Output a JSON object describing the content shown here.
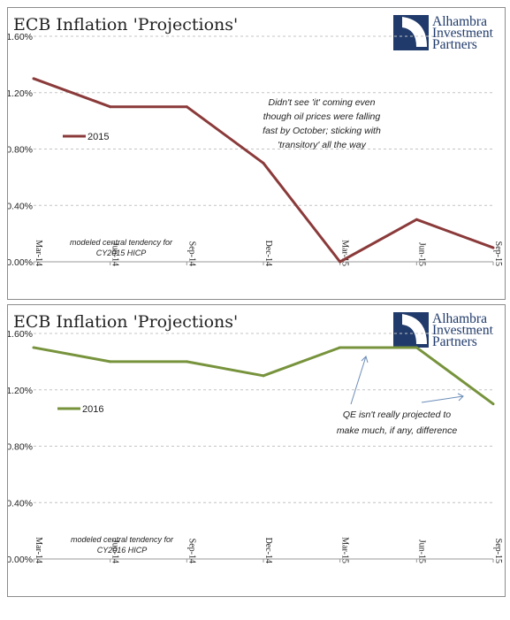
{
  "chart_data": [
    {
      "type": "line",
      "title": "ECB Inflation 'Projections'",
      "categories": [
        "Mar-14",
        "Jun-14",
        "Sep-14",
        "Dec-14",
        "Mar-15",
        "Jun-15",
        "Sep-15"
      ],
      "series": [
        {
          "name": "2015",
          "values": [
            1.3,
            1.1,
            1.1,
            0.7,
            0.0,
            0.3,
            0.1
          ],
          "color": "#8b3a3a"
        }
      ],
      "ylim": [
        0,
        1.6
      ],
      "yticks": [
        0,
        0.4,
        0.8,
        1.2,
        1.6
      ],
      "ytick_labels": [
        "0.00%",
        "0.40%",
        "0.80%",
        "1.20%",
        "1.60%"
      ],
      "grid": "horizontal dashed",
      "legend_position": "left",
      "logo_text": [
        "Alhambra",
        "Investment",
        "Partners"
      ],
      "note_lines": [
        "modeled central tendency for",
        "CY2015 HICP"
      ],
      "annotation_lines": [
        "Didn't see 'it' coming even",
        "though oil prices were falling",
        "fast by October; sticking with",
        "'transitory' all the way"
      ]
    },
    {
      "type": "line",
      "title": "ECB Inflation 'Projections'",
      "categories": [
        "Mar-14",
        "Jun-14",
        "Sep-14",
        "Dec-14",
        "Mar-15",
        "Jun-15",
        "Sep-15"
      ],
      "series": [
        {
          "name": "2016",
          "values": [
            1.5,
            1.4,
            1.4,
            1.3,
            1.5,
            1.5,
            1.1
          ],
          "color": "#77933c"
        }
      ],
      "ylim": [
        0,
        1.6
      ],
      "yticks": [
        0,
        0.4,
        0.8,
        1.2,
        1.6
      ],
      "ytick_labels": [
        "0.00%",
        "0.40%",
        "0.80%",
        "1.20%",
        "1.60%"
      ],
      "grid": "horizontal dashed",
      "legend_position": "left",
      "logo_text": [
        "Alhambra",
        "Investment",
        "Partners"
      ],
      "note_lines": [
        "modeled central tendency for",
        "CY2016 HICP"
      ],
      "annotation_lines": [
        "QE isn't really projected to",
        "make much, if any, difference"
      ]
    }
  ]
}
